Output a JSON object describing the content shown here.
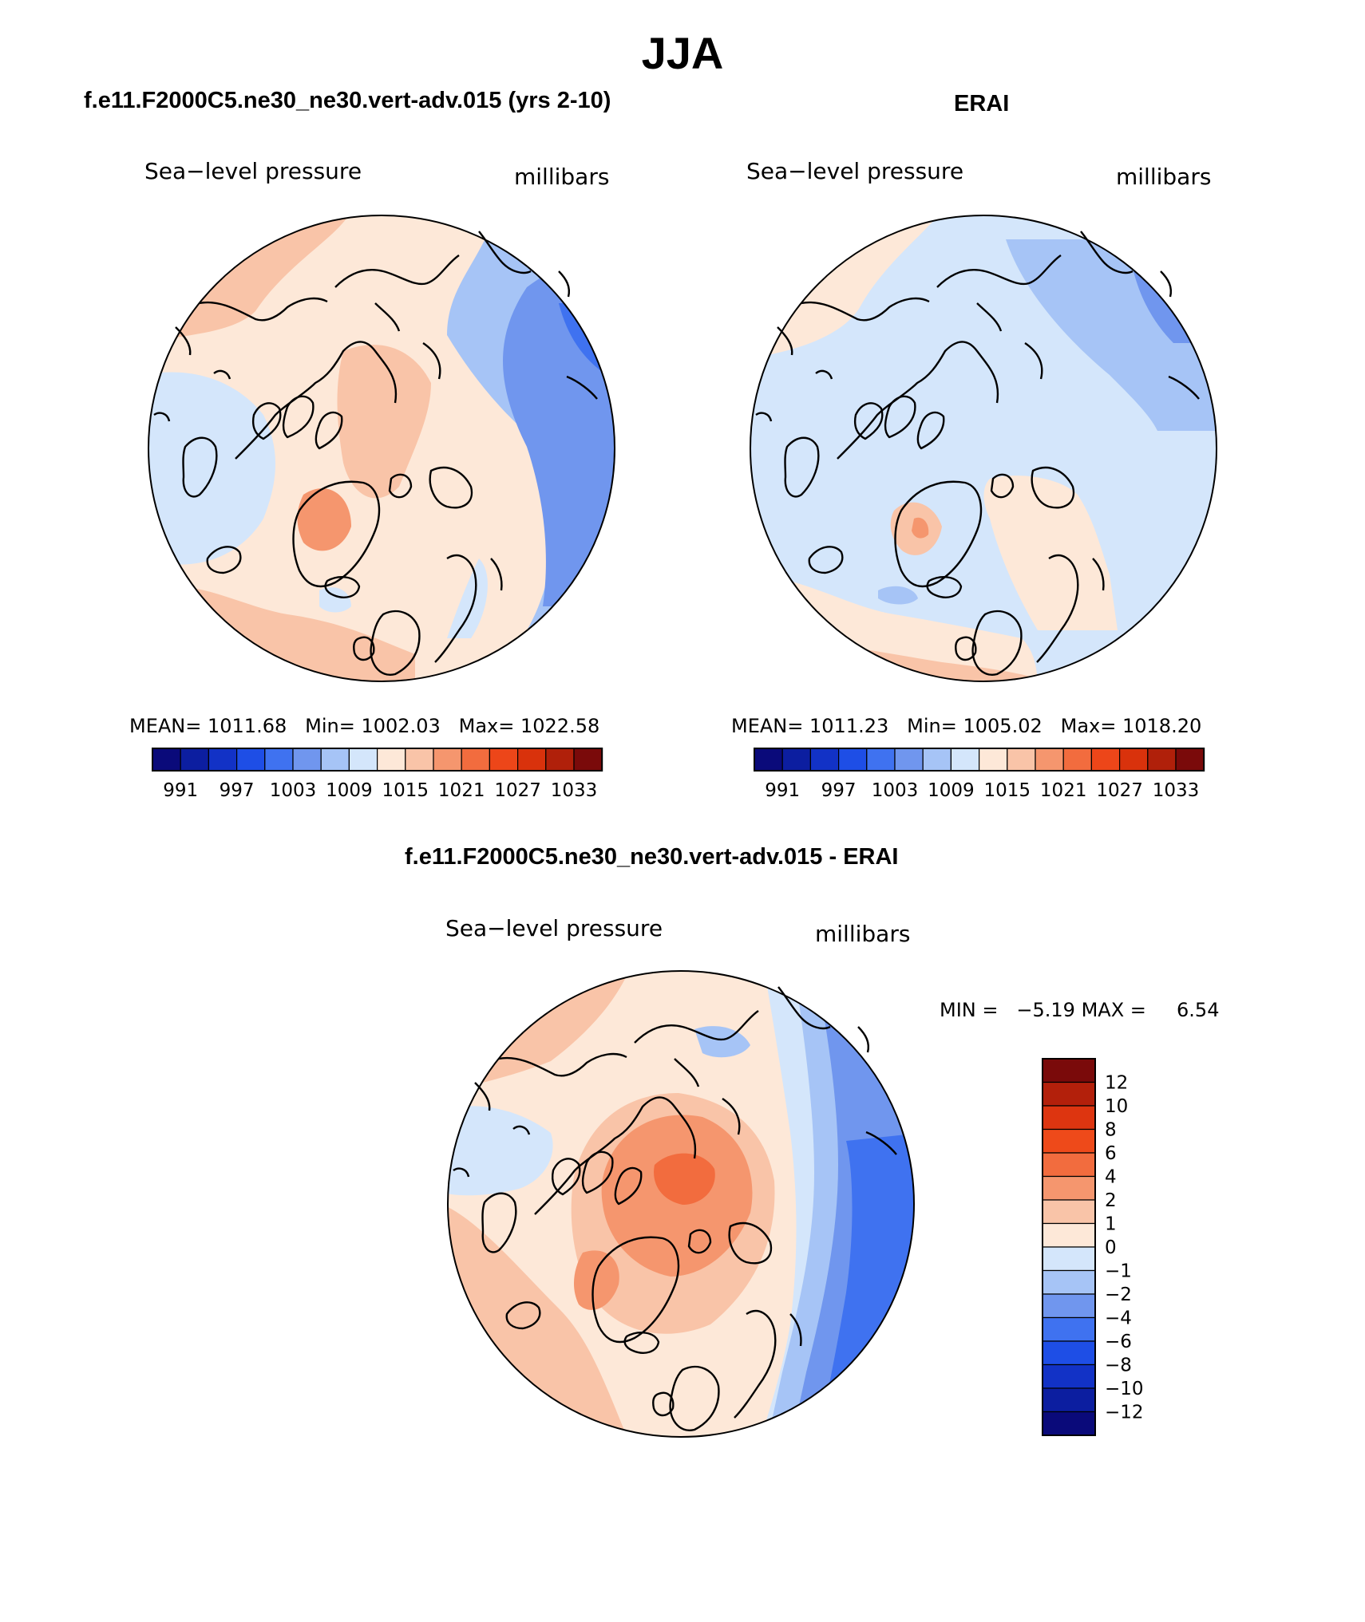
{
  "figure": {
    "season": "JJA"
  },
  "panels": [
    {
      "name": "model",
      "title": "f.e11.F2000C5.ne30_ne30.vert-adv.015 (yrs 2-10)",
      "variable": "Sea−level pressure",
      "units": "millibars",
      "stats": {
        "mean_label": "MEAN=",
        "mean": "1011.68",
        "min_label": "Min=",
        "min": "1002.03",
        "max_label": "Max=",
        "max": "1022.58"
      }
    },
    {
      "name": "obs",
      "title": "ERAI",
      "variable": "Sea−level pressure",
      "units": "millibars",
      "stats": {
        "mean_label": "MEAN=",
        "mean": "1011.23",
        "min_label": "Min=",
        "min": "1005.02",
        "max_label": "Max=",
        "max": "1018.20"
      }
    },
    {
      "name": "difference",
      "title": "f.e11.F2000C5.ne30_ne30.vert-adv.015 - ERAI",
      "variable": "Sea−level pressure",
      "units": "millibars",
      "stats": {
        "min_label": "MIN =",
        "min": "−5.19",
        "max_label": "MAX =",
        "max": "6.54"
      }
    }
  ],
  "colorbar_abs": {
    "colors": [
      "#0a0a7a",
      "#0c1ea0",
      "#1232c6",
      "#1e4ee6",
      "#3f72f0",
      "#7096ee",
      "#a6c4f6",
      "#d4e6fb",
      "#fde8d8",
      "#f9c4a8",
      "#f5966e",
      "#f26c3e",
      "#ed4619",
      "#d9320c",
      "#b0200a",
      "#7a0a0a"
    ],
    "tick_labels": [
      "991",
      "997",
      "1003",
      "1009",
      "1015",
      "1021",
      "1027",
      "1033"
    ]
  },
  "colorbar_diff": {
    "colors": [
      "#7a0a0a",
      "#b3200b",
      "#dd3510",
      "#ee4a1a",
      "#f26c3e",
      "#f5966e",
      "#f9c4a8",
      "#fde8d8",
      "#d4e6fb",
      "#a6c4f6",
      "#7096ee",
      "#3f72f0",
      "#1e4ee6",
      "#1232c6",
      "#0c1ea0",
      "#0a0a7a"
    ],
    "tick_labels": [
      "12",
      "10",
      "8",
      "6",
      "4",
      "2",
      "1",
      "0",
      "−1",
      "−2",
      "−4",
      "−6",
      "−8",
      "−10",
      "−12"
    ]
  }
}
